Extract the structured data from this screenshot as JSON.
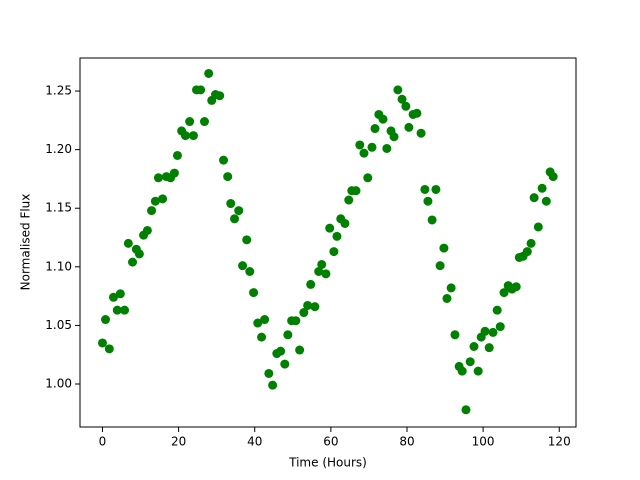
{
  "chart_data": {
    "type": "scatter",
    "xlabel": "Time (Hours)",
    "ylabel": "Normalised Flux",
    "color": "#008000",
    "x": [
      0,
      0.8,
      1.8,
      2.9,
      3.9,
      4.7,
      5.8,
      6.8,
      7.9,
      8.9,
      9.7,
      10.8,
      11.8,
      12.9,
      13.9,
      14.7,
      15.8,
      16.8,
      17.9,
      18.9,
      19.7,
      20.8,
      21.8,
      22.9,
      23.9,
      24.7,
      25.8,
      26.8,
      27.9,
      28.7,
      29.7,
      30.8,
      31.8,
      32.9,
      33.7,
      34.7,
      35.8,
      36.8,
      37.9,
      38.7,
      39.7,
      40.8,
      41.8,
      42.6,
      43.7,
      44.7,
      45.8,
      46.8,
      47.9,
      48.7,
      49.7,
      50.8,
      51.8,
      52.9,
      53.9,
      54.7,
      55.8,
      56.8,
      57.6,
      58.7,
      59.7,
      60.8,
      61.6,
      62.6,
      63.7,
      64.7,
      65.5,
      66.6,
      67.6,
      68.7,
      69.7,
      70.8,
      71.6,
      72.6,
      73.7,
      74.7,
      75.8,
      76.6,
      77.6,
      78.7,
      79.7,
      80.5,
      81.6,
      82.6,
      83.7,
      84.7,
      85.5,
      86.6,
      87.6,
      88.7,
      89.7,
      90.5,
      91.6,
      92.6,
      93.7,
      94.5,
      95.5,
      96.6,
      97.6,
      98.7,
      99.5,
      100.5,
      101.6,
      102.6,
      103.7,
      104.5,
      105.5,
      106.6,
      107.6,
      108.7,
      109.5,
      110.5,
      111.6,
      112.6,
      113.4,
      114.5,
      115.5,
      116.6,
      117.6,
      118.4
    ],
    "values": [
      1.035,
      1.055,
      1.03,
      1.074,
      1.063,
      1.077,
      1.063,
      1.12,
      1.104,
      1.115,
      1.111,
      1.127,
      1.131,
      1.148,
      1.156,
      1.176,
      1.158,
      1.177,
      1.176,
      1.18,
      1.195,
      1.216,
      1.212,
      1.224,
      1.212,
      1.251,
      1.251,
      1.224,
      1.265,
      1.242,
      1.247,
      1.246,
      1.191,
      1.177,
      1.154,
      1.141,
      1.148,
      1.101,
      1.123,
      1.096,
      1.078,
      1.052,
      1.04,
      1.055,
      1.009,
      0.999,
      1.026,
      1.028,
      1.017,
      1.042,
      1.054,
      1.054,
      1.029,
      1.061,
      1.067,
      1.085,
      1.066,
      1.096,
      1.102,
      1.094,
      1.133,
      1.113,
      1.126,
      1.141,
      1.137,
      1.157,
      1.165,
      1.165,
      1.204,
      1.197,
      1.176,
      1.202,
      1.218,
      1.23,
      1.226,
      1.201,
      1.216,
      1.211,
      1.251,
      1.243,
      1.237,
      1.219,
      1.23,
      1.231,
      1.214,
      1.166,
      1.156,
      1.14,
      1.166,
      1.101,
      1.116,
      1.073,
      1.082,
      1.042,
      1.015,
      1.011,
      0.978,
      1.019,
      1.032,
      1.011,
      1.04,
      1.045,
      1.031,
      1.044,
      1.063,
      1.049,
      1.078,
      1.084,
      1.081,
      1.083,
      1.108,
      1.109,
      1.113,
      1.12,
      1.159,
      1.134,
      1.167,
      1.156,
      1.181,
      1.177
    ],
    "xlim": [
      -5.9,
      124.4
    ],
    "xticks": [
      0,
      20,
      40,
      60,
      80,
      100,
      120
    ],
    "ylim": [
      0.9633,
      1.2782
    ],
    "yticks": [
      {
        "value": 1.0,
        "label": "1.00"
      },
      1.05,
      {
        "value": 1.1,
        "label": "1.10"
      },
      1.15,
      {
        "value": 1.2,
        "label": "1.20"
      },
      1.25
    ]
  }
}
